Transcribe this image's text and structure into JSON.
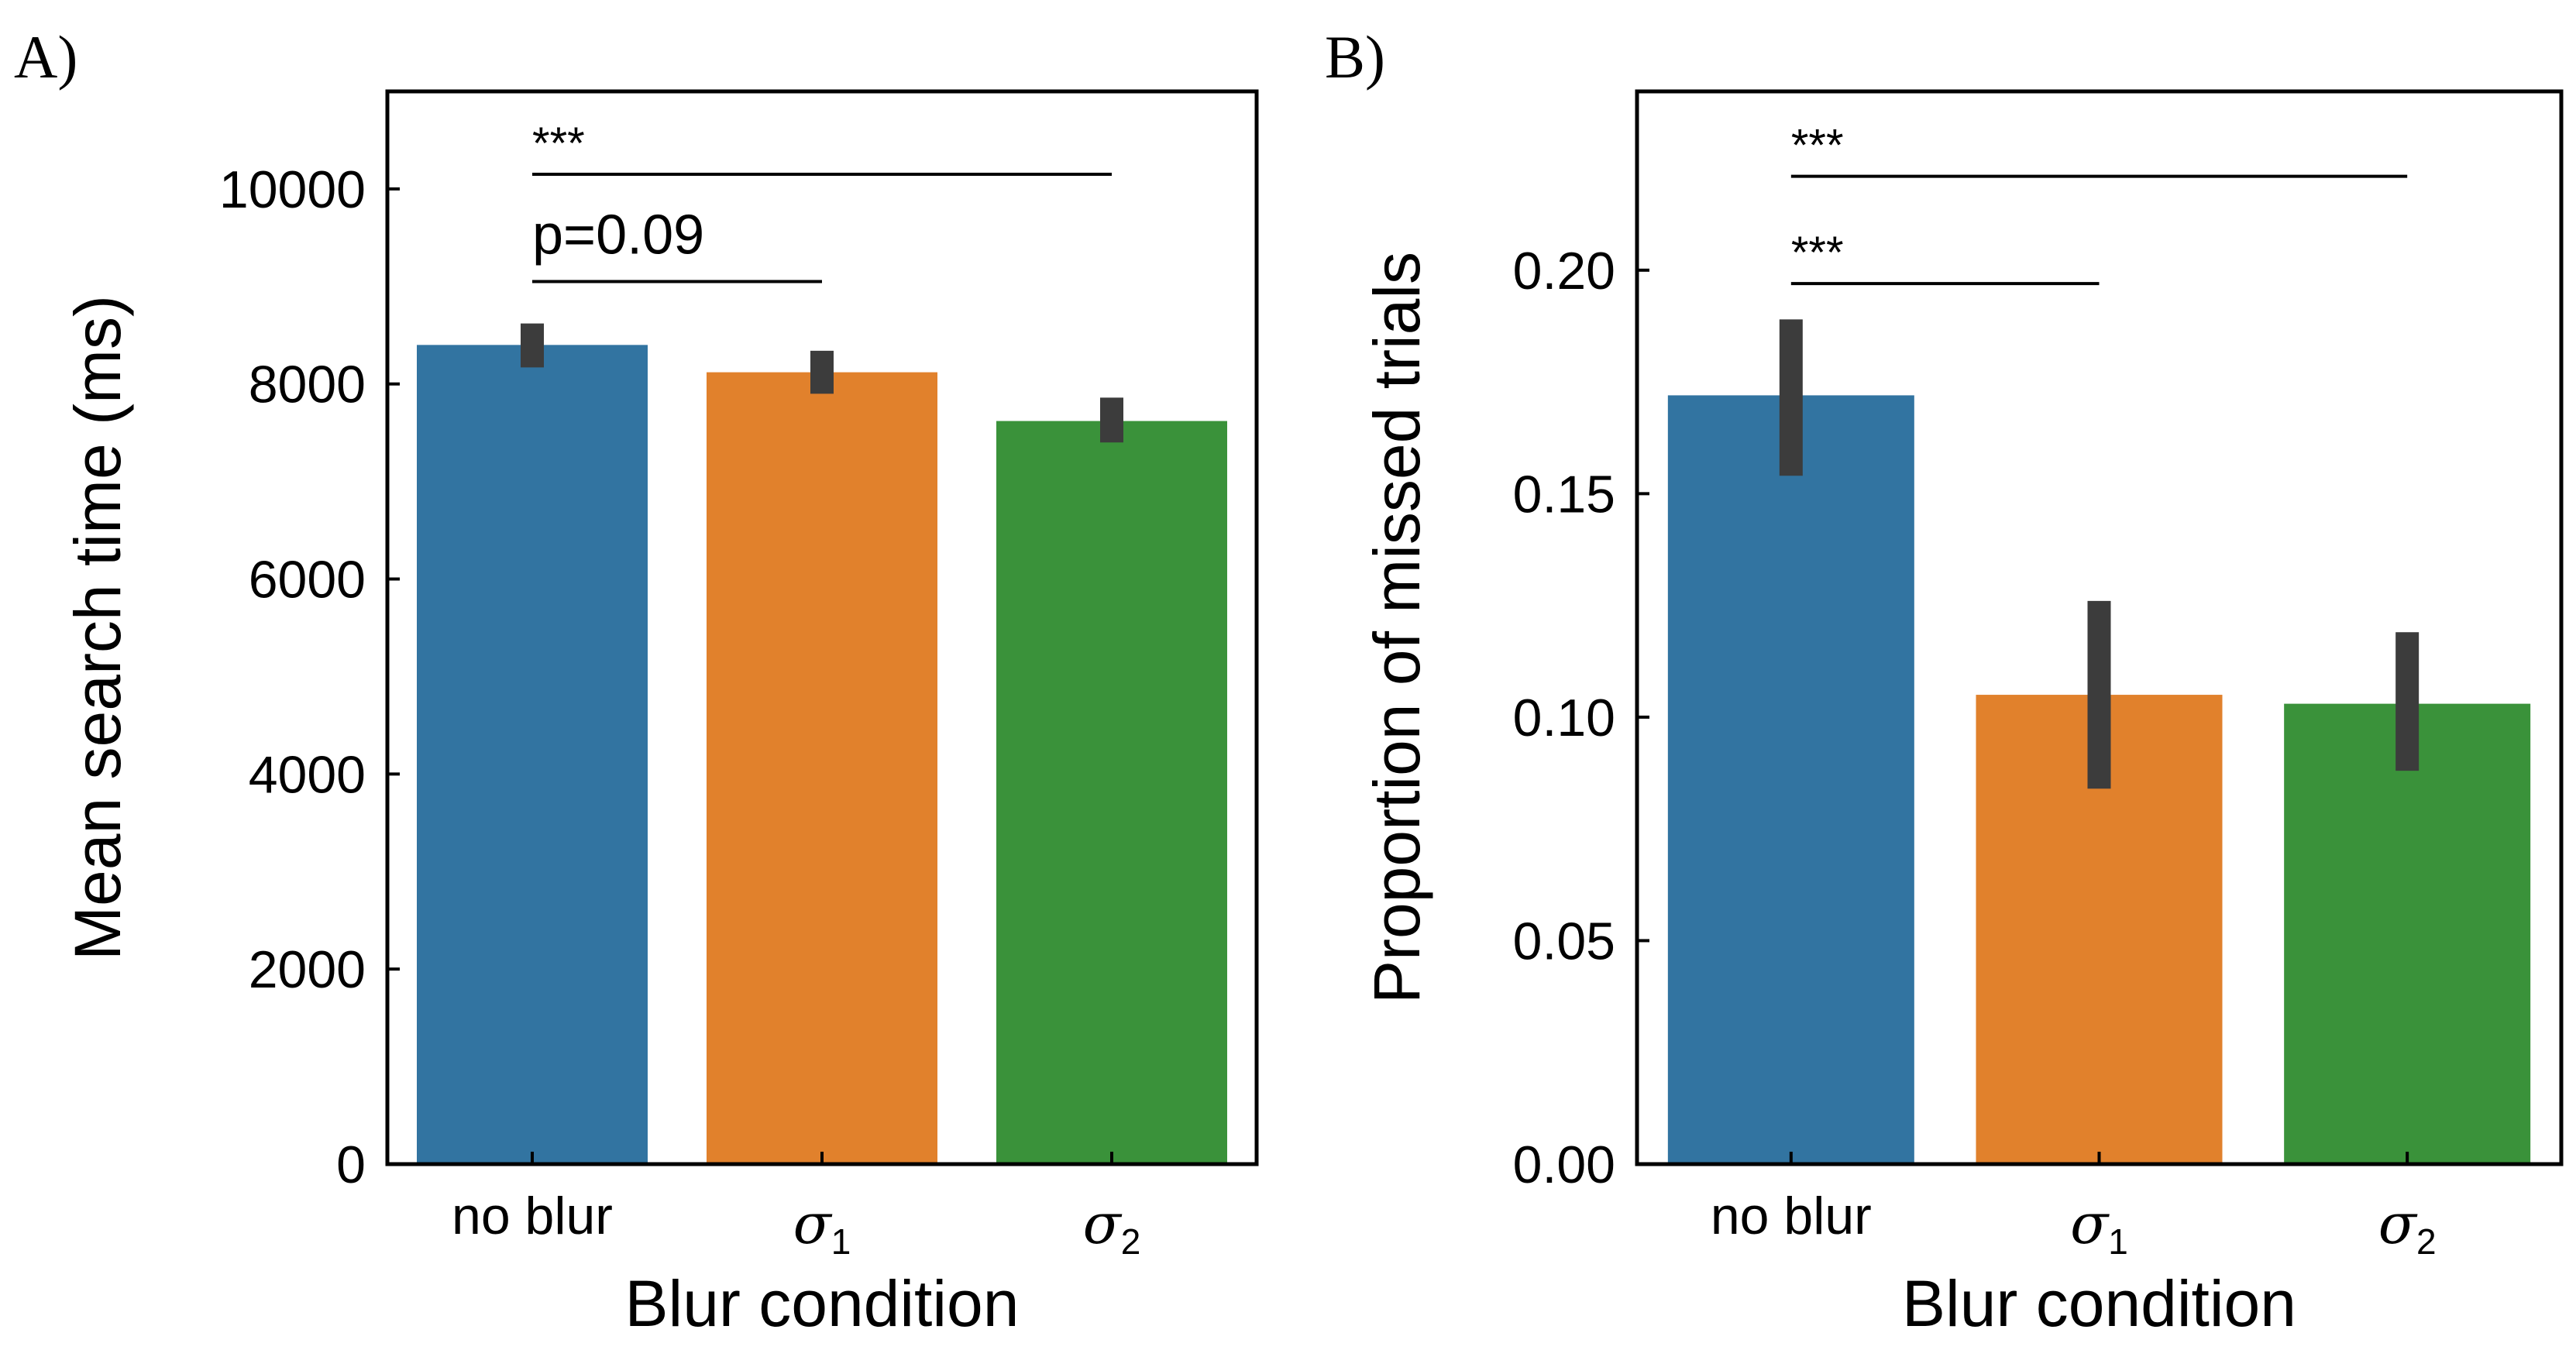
{
  "chart_data": [
    {
      "panel_label": "A)",
      "type": "bar",
      "title": "",
      "xlabel": "Blur condition",
      "ylabel": "Mean search time (ms)",
      "ylim": [
        0,
        11000
      ],
      "yticks": [
        "0",
        "2000",
        "4000",
        "6000",
        "8000",
        "10000"
      ],
      "ytick_values": [
        0,
        2000,
        4000,
        6000,
        8000,
        10000
      ],
      "categories": [
        {
          "main": "no blur",
          "sub": ""
        },
        {
          "main": "σ",
          "sub": "1"
        },
        {
          "main": "σ",
          "sub": "2"
        }
      ],
      "values": [
        8400,
        8120,
        7620
      ],
      "error_low": [
        8170,
        7900,
        7400
      ],
      "error_high": [
        8620,
        8340,
        7860
      ],
      "colors": [
        "#3274A1",
        "#E1812C",
        "#3A923A"
      ],
      "error_color": "#3C3C3C",
      "annotations": [
        {
          "text": "***",
          "from": 0,
          "to": 2,
          "level": 10150
        },
        {
          "text": "p=0.09",
          "from": 0,
          "to": 1,
          "level": 9050
        }
      ]
    },
    {
      "panel_label": "B)",
      "type": "bar",
      "title": "",
      "xlabel": "Blur condition",
      "ylabel": "Proportion of missed trials",
      "ylim": [
        0,
        0.24
      ],
      "yticks": [
        "0.00",
        "0.05",
        "0.10",
        "0.15",
        "0.20"
      ],
      "ytick_values": [
        0,
        0.05,
        0.1,
        0.15,
        0.2
      ],
      "categories": [
        {
          "main": "no blur",
          "sub": ""
        },
        {
          "main": "σ",
          "sub": "1"
        },
        {
          "main": "σ",
          "sub": "2"
        }
      ],
      "values": [
        0.172,
        0.105,
        0.103
      ],
      "error_low": [
        0.154,
        0.084,
        0.088
      ],
      "error_high": [
        0.189,
        0.126,
        0.119
      ],
      "colors": [
        "#3274A1",
        "#E1812C",
        "#3A923A"
      ],
      "error_color": "#3C3C3C",
      "annotations": [
        {
          "text": "***",
          "from": 0,
          "to": 2,
          "level": 0.221
        },
        {
          "text": "***",
          "from": 0,
          "to": 1,
          "level": 0.197
        }
      ]
    }
  ]
}
